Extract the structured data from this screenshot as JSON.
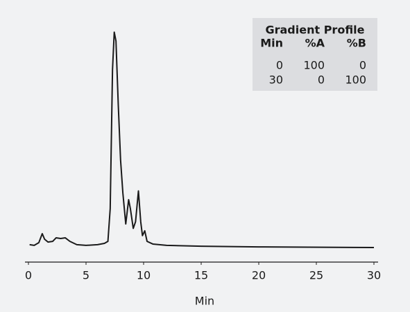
{
  "chart_data": {
    "type": "line",
    "x": [
      0.1,
      0.5,
      0.9,
      1.2,
      1.4,
      1.7,
      2.1,
      2.4,
      2.8,
      3.2,
      3.6,
      4.2,
      5,
      6,
      6.6,
      6.9,
      7.1,
      7.3,
      7.45,
      7.6,
      7.8,
      8.0,
      8.2,
      8.45,
      8.7,
      8.85,
      9.1,
      9.3,
      9.55,
      9.75,
      9.9,
      10.1,
      10.3,
      10.8,
      12,
      15,
      20,
      30
    ],
    "series": [
      {
        "color": "#1a1a1a",
        "values": [
          1.6,
          1.3,
          2.5,
          6.6,
          4.1,
          2.8,
          3.1,
          4.7,
          4.4,
          4.7,
          3.1,
          1.6,
          1.3,
          1.6,
          2.2,
          3.1,
          18,
          81,
          98,
          94,
          65,
          40,
          25,
          11,
          22,
          18,
          9,
          12,
          26,
          12,
          5.7,
          7.9,
          3.1,
          1.9,
          1.3,
          0.9,
          0.6,
          0.3
        ]
      }
    ],
    "xlabel": "Min",
    "xlim": [
      0,
      30
    ],
    "xticks": [
      0,
      5,
      10,
      15,
      20,
      25,
      30
    ],
    "ylim": [
      0,
      100
    ],
    "table": {
      "title": "Gradient Profile",
      "columns": [
        "Min",
        "%A",
        "%B"
      ],
      "rows": [
        [
          0,
          100,
          0
        ],
        [
          30,
          0,
          100
        ]
      ]
    }
  }
}
